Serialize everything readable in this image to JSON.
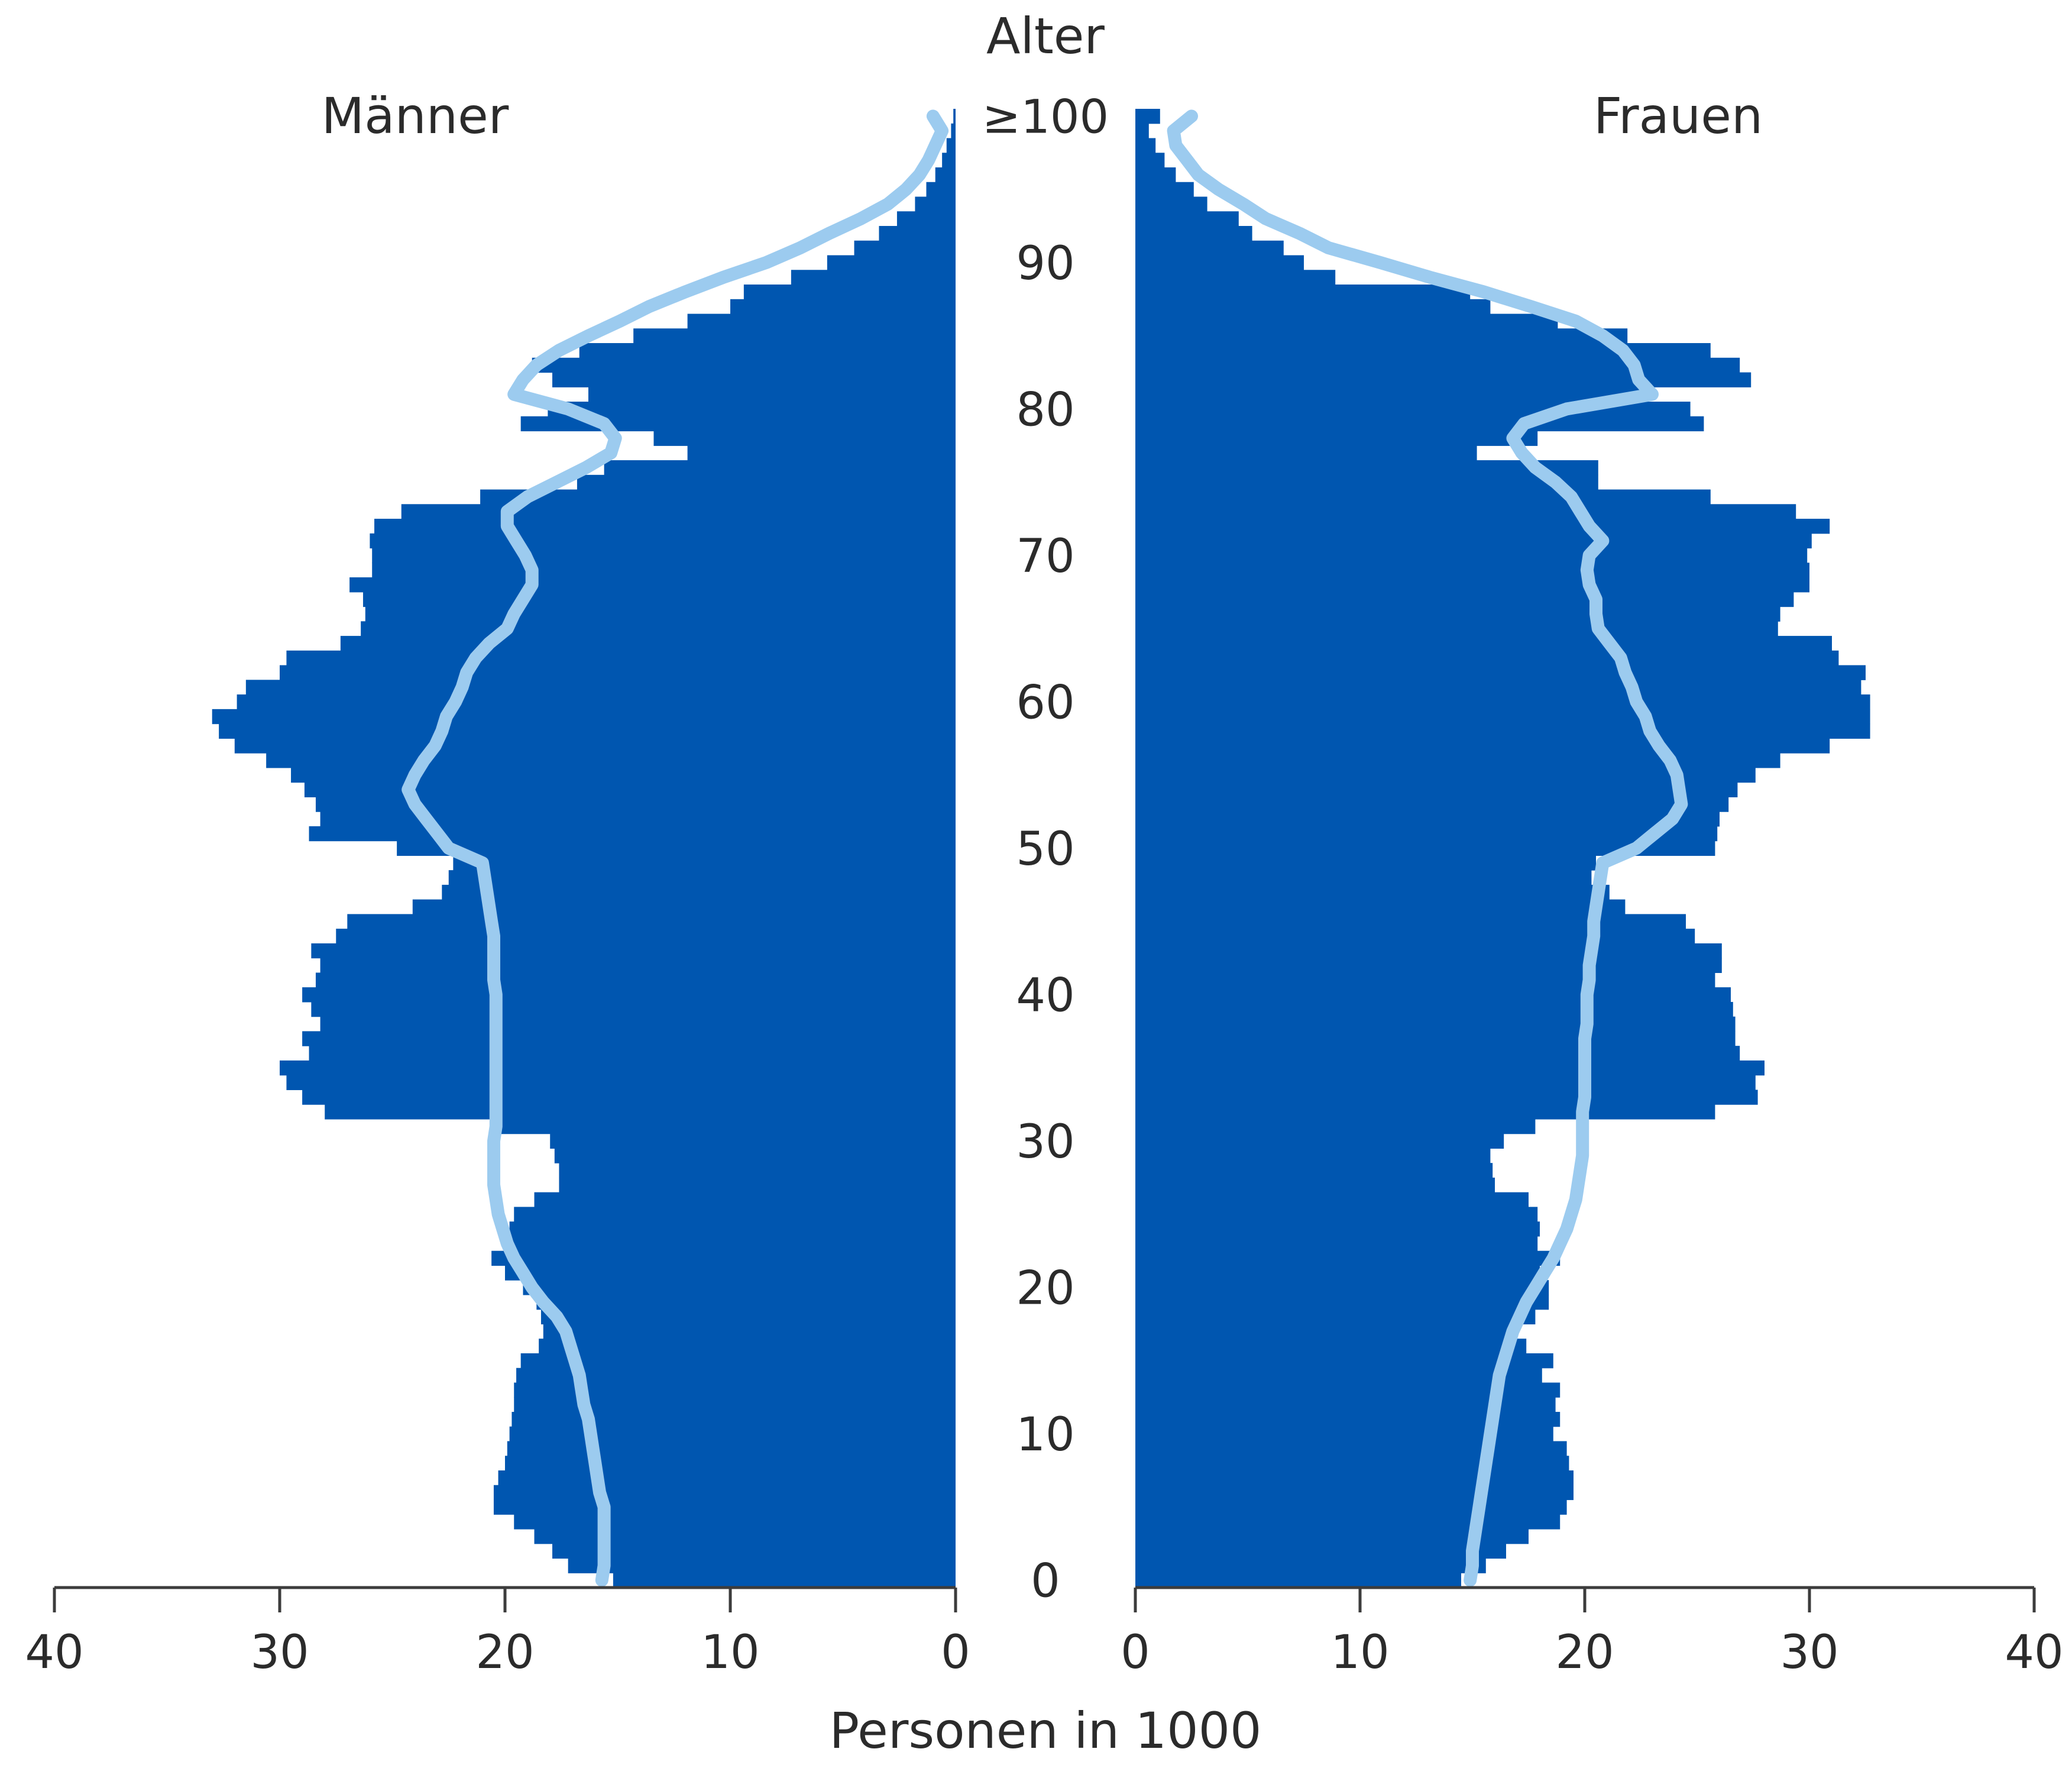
{
  "chart_data": {
    "type": "bar",
    "orientation": "horizontal-population-pyramid",
    "title": "",
    "y_axis_label": "Alter",
    "x_axis_label": "Personen in 1000",
    "left_panel_label": "Männer",
    "right_panel_label": "Frauen",
    "age_tick_labels": [
      "0",
      "10",
      "20",
      "30",
      "40",
      "50",
      "60",
      "70",
      "80",
      "90",
      "≥100"
    ],
    "x_ticks_left": [
      "40",
      "30",
      "20",
      "10",
      "0"
    ],
    "x_ticks_right": [
      "0",
      "10",
      "20",
      "30",
      "40"
    ],
    "xlim": [
      0,
      40
    ],
    "ylim": [
      0,
      100
    ],
    "colors": {
      "bars": "#0056b0",
      "line": "#9ccbef",
      "axis": "#3c3c3c"
    },
    "ages": [
      0,
      1,
      2,
      3,
      4,
      5,
      6,
      7,
      8,
      9,
      10,
      11,
      12,
      13,
      14,
      15,
      16,
      17,
      18,
      19,
      20,
      21,
      22,
      23,
      24,
      25,
      26,
      27,
      28,
      29,
      30,
      31,
      32,
      33,
      34,
      35,
      36,
      37,
      38,
      39,
      40,
      41,
      42,
      43,
      44,
      45,
      46,
      47,
      48,
      49,
      50,
      51,
      52,
      53,
      54,
      55,
      56,
      57,
      58,
      59,
      60,
      61,
      62,
      63,
      64,
      65,
      66,
      67,
      68,
      69,
      70,
      71,
      72,
      73,
      74,
      75,
      76,
      77,
      78,
      79,
      80,
      81,
      82,
      83,
      84,
      85,
      86,
      87,
      88,
      89,
      90,
      91,
      92,
      93,
      94,
      95,
      96,
      97,
      98,
      99,
      100
    ],
    "series": [
      {
        "name": "Männer",
        "type": "bar",
        "values": [
          15.2,
          17.2,
          17.9,
          18.7,
          19.6,
          20.5,
          20.5,
          20.3,
          20.0,
          19.9,
          19.8,
          19.7,
          19.6,
          19.6,
          19.5,
          19.3,
          18.5,
          18.3,
          18.4,
          18.6,
          19.2,
          20.0,
          20.6,
          20.0,
          19.8,
          19.6,
          18.7,
          17.6,
          17.6,
          17.8,
          18.0,
          20.3,
          28.0,
          29.0,
          29.7,
          30.0,
          28.7,
          29.0,
          28.2,
          28.6,
          29.0,
          28.4,
          28.2,
          28.6,
          27.5,
          27.0,
          24.1,
          22.8,
          22.5,
          22.3,
          24.8,
          28.7,
          28.2,
          28.4,
          28.9,
          29.5,
          30.6,
          32.0,
          32.7,
          33.0,
          31.9,
          31.5,
          30.0,
          29.7,
          27.3,
          26.4,
          26.2,
          26.3,
          26.9,
          25.9,
          25.9,
          26.0,
          25.8,
          24.6,
          21.1,
          16.8,
          15.6,
          11.9,
          13.4,
          19.3,
          18.1,
          16.3,
          17.9,
          18.8,
          16.7,
          14.3,
          11.9,
          10.0,
          9.4,
          7.3,
          5.7,
          4.5,
          3.4,
          2.6,
          1.8,
          1.3,
          0.9,
          0.6,
          0.4,
          0.2,
          0.1
        ]
      },
      {
        "name": "Frauen",
        "type": "bar",
        "values": [
          14.5,
          15.6,
          16.5,
          17.5,
          18.9,
          19.2,
          19.5,
          19.5,
          19.3,
          19.2,
          18.6,
          18.9,
          18.7,
          18.9,
          18.1,
          18.6,
          17.4,
          17.0,
          17.8,
          18.4,
          18.4,
          18.0,
          18.9,
          17.9,
          18.0,
          17.9,
          17.5,
          16.0,
          15.9,
          15.8,
          16.4,
          17.8,
          25.8,
          27.7,
          27.6,
          28.0,
          26.9,
          26.7,
          26.7,
          26.6,
          26.5,
          25.8,
          26.1,
          26.1,
          24.9,
          24.5,
          21.8,
          21.1,
          20.3,
          20.5,
          25.8,
          25.9,
          26.0,
          26.4,
          26.8,
          27.6,
          28.7,
          30.9,
          32.7,
          32.7,
          32.7,
          32.3,
          32.5,
          31.3,
          31.0,
          28.6,
          28.7,
          29.3,
          30.0,
          30.0,
          29.9,
          30.1,
          30.9,
          29.4,
          25.6,
          20.6,
          20.6,
          15.2,
          17.9,
          25.3,
          24.7,
          22.7,
          27.4,
          26.9,
          25.6,
          21.9,
          18.8,
          15.8,
          14.9,
          8.9,
          7.5,
          6.6,
          5.2,
          4.6,
          3.2,
          2.6,
          1.8,
          1.3,
          0.9,
          0.6,
          1.1
        ]
      },
      {
        "name": "Männer (Linie)",
        "type": "line",
        "values": [
          15.7,
          15.6,
          15.6,
          15.6,
          15.6,
          15.6,
          15.8,
          15.9,
          16.0,
          16.1,
          16.2,
          16.3,
          16.5,
          16.6,
          16.7,
          16.9,
          17.1,
          17.3,
          17.7,
          18.3,
          18.8,
          19.2,
          19.6,
          19.9,
          20.1,
          20.3,
          20.4,
          20.5,
          20.5,
          20.5,
          20.5,
          20.4,
          20.4,
          20.4,
          20.4,
          20.4,
          20.4,
          20.4,
          20.4,
          20.4,
          20.4,
          20.5,
          20.5,
          20.5,
          20.5,
          20.6,
          20.7,
          20.8,
          20.9,
          21.0,
          22.5,
          23.0,
          23.5,
          24.0,
          24.3,
          24.0,
          23.6,
          23.1,
          22.8,
          22.6,
          22.2,
          21.9,
          21.7,
          21.3,
          20.7,
          19.9,
          19.6,
          19.2,
          18.8,
          18.8,
          19.1,
          19.5,
          19.9,
          19.9,
          19.0,
          17.7,
          16.4,
          15.3,
          15.1,
          15.6,
          17.2,
          19.6,
          19.2,
          18.6,
          17.6,
          16.3,
          14.9,
          13.6,
          12.0,
          10.3,
          8.4,
          6.9,
          5.6,
          4.2,
          3.0,
          2.2,
          1.6,
          1.2,
          0.9,
          0.6,
          1.0
        ]
      },
      {
        "name": "Frauen (Linie)",
        "type": "line",
        "values": [
          14.9,
          15.0,
          15.0,
          15.1,
          15.2,
          15.3,
          15.4,
          15.5,
          15.6,
          15.7,
          15.8,
          15.9,
          16.0,
          16.1,
          16.2,
          16.4,
          16.6,
          16.8,
          17.1,
          17.4,
          17.8,
          18.2,
          18.6,
          18.9,
          19.2,
          19.4,
          19.6,
          19.7,
          19.8,
          19.9,
          19.9,
          19.9,
          19.9,
          20.0,
          20.0,
          20.0,
          20.0,
          20.0,
          20.1,
          20.1,
          20.1,
          20.2,
          20.2,
          20.3,
          20.4,
          20.4,
          20.5,
          20.6,
          20.7,
          20.8,
          22.3,
          23.1,
          23.9,
          24.3,
          24.2,
          24.1,
          23.8,
          23.3,
          22.9,
          22.7,
          22.3,
          22.1,
          21.8,
          21.6,
          21.1,
          20.6,
          20.5,
          20.5,
          20.2,
          20.1,
          20.2,
          20.8,
          20.2,
          19.8,
          19.4,
          18.7,
          17.8,
          17.2,
          16.8,
          17.3,
          19.2,
          23.0,
          22.4,
          22.2,
          21.7,
          20.8,
          19.6,
          17.6,
          15.5,
          13.1,
          10.9,
          8.6,
          7.3,
          5.8,
          4.8,
          3.7,
          2.8,
          2.3,
          1.8,
          1.7,
          2.5
        ]
      }
    ]
  }
}
